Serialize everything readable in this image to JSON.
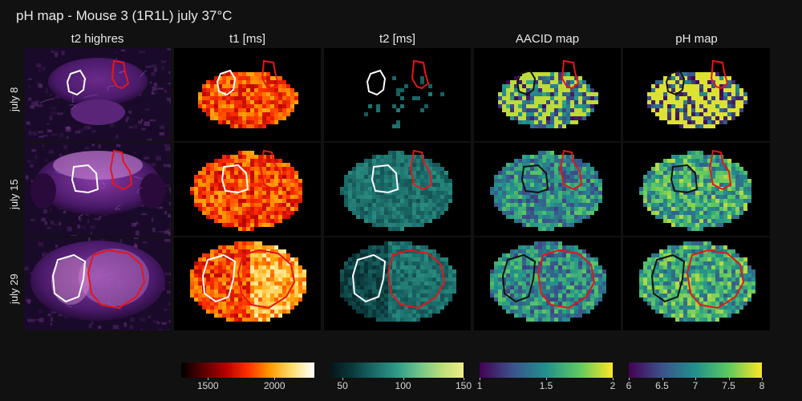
{
  "title": "pH map - Mouse 3 (1R1L) july 37°C",
  "columns": [
    "t2 highres",
    "t1 [ms]",
    "t2 [ms]",
    "AACID map",
    "pH map"
  ],
  "rows": [
    "july 8",
    "july 15",
    "july 29"
  ],
  "colorbars": [
    {
      "name": "t1",
      "ticks": [
        "1500",
        "2000"
      ],
      "stops": [
        "#000000",
        "#5a0000",
        "#b40000",
        "#ff3000",
        "#ff9a00",
        "#ffe070",
        "#ffffff"
      ]
    },
    {
      "name": "t2",
      "ticks": [
        "50",
        "100",
        "150"
      ],
      "stops": [
        "#05161a",
        "#0b3a3c",
        "#1c6b6a",
        "#2f9a88",
        "#6ec48a",
        "#b9de79",
        "#f0ee87"
      ]
    },
    {
      "name": "aacid",
      "ticks": [
        "1",
        "1.5",
        "2"
      ],
      "stops": [
        "#440154",
        "#3b528b",
        "#21918c",
        "#5ec962",
        "#fde725"
      ]
    },
    {
      "name": "ph",
      "ticks": [
        "6",
        "6.5",
        "7",
        "7.5",
        "8"
      ],
      "stops": [
        "#440154",
        "#3b528b",
        "#21918c",
        "#5ec962",
        "#fde725"
      ]
    }
  ],
  "roi_colors": {
    "left": "#ffffff",
    "right": "#e8141a"
  }
}
